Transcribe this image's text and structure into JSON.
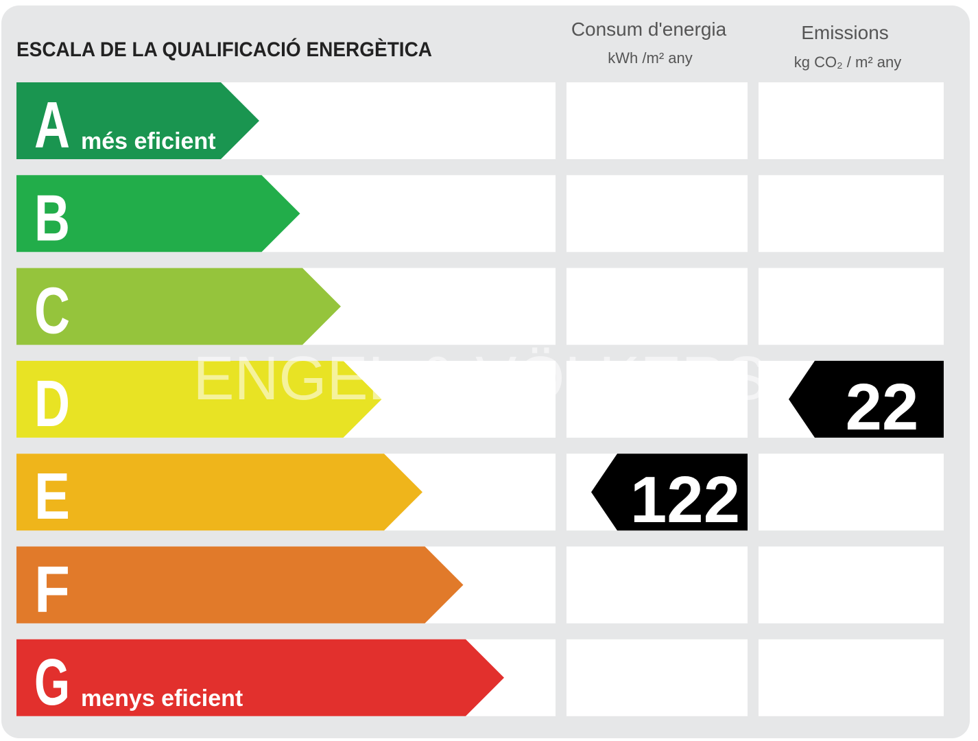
{
  "title": "ESCALA DE LA QUALIFICACIÓ ENERGÈTICA",
  "columns": [
    {
      "title": "Consum d'energia",
      "unit": "kWh /m² any"
    },
    {
      "title": "Emissions",
      "unit": "kg CO₂ / m² any"
    }
  ],
  "watermark": "ENGEL & VÖLKERS",
  "ratings": [
    {
      "letter": "A",
      "note": "més eficient",
      "color": "#1a9550"
    },
    {
      "letter": "B",
      "color": "#22ad4a"
    },
    {
      "letter": "C",
      "color": "#95c43c"
    },
    {
      "letter": "D",
      "color": "#e8e324",
      "emissions": 22
    },
    {
      "letter": "E",
      "color": "#efb51b",
      "consumption": 122
    },
    {
      "letter": "F",
      "color": "#e17a2a"
    },
    {
      "letter": "G",
      "note": "menys eficient",
      "color": "#e2302d"
    }
  ]
}
